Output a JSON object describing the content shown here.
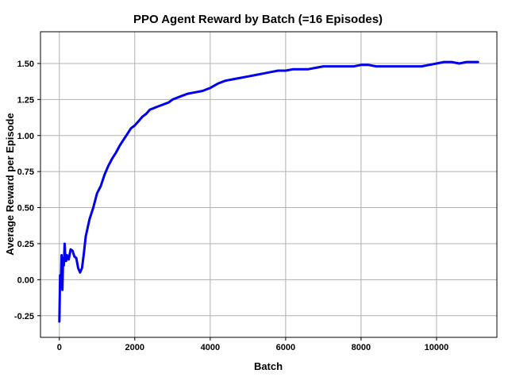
{
  "chart_data": {
    "type": "line",
    "title": "PPO Agent Reward by Batch  (=16 Episodes)",
    "xlabel": "Batch",
    "ylabel": "Average Reward per Episode",
    "xlim": [
      -500,
      11600
    ],
    "ylim": [
      -0.4,
      1.72
    ],
    "xticks": [
      0,
      2000,
      4000,
      6000,
      8000,
      10000
    ],
    "xtick_labels": [
      "0",
      "2000",
      "4000",
      "6000",
      "8000",
      "10000"
    ],
    "yticks": [
      -0.25,
      0.0,
      0.25,
      0.5,
      0.75,
      1.0,
      1.25,
      1.5
    ],
    "ytick_labels": [
      "-0.25",
      "0.00",
      "0.25",
      "0.50",
      "0.75",
      "1.00",
      "1.25",
      "1.50"
    ],
    "grid": true,
    "legend": "none",
    "series": [
      {
        "color": "#0000ee",
        "x": [
          0,
          20,
          40,
          60,
          80,
          100,
          120,
          140,
          160,
          180,
          200,
          250,
          300,
          350,
          400,
          450,
          500,
          550,
          600,
          650,
          700,
          800,
          900,
          1000,
          1100,
          1200,
          1300,
          1400,
          1500,
          1600,
          1700,
          1800,
          1900,
          2000,
          2100,
          2200,
          2300,
          2400,
          2500,
          2600,
          2700,
          2800,
          2900,
          3000,
          3200,
          3400,
          3600,
          3800,
          4000,
          4200,
          4400,
          4600,
          4800,
          5000,
          5200,
          5400,
          5600,
          5800,
          6000,
          6200,
          6400,
          6600,
          6800,
          7000,
          7200,
          7400,
          7600,
          7800,
          8000,
          8200,
          8400,
          8600,
          8800,
          9000,
          9200,
          9400,
          9600,
          9800,
          10000,
          10200,
          10400,
          10600,
          10800,
          11000,
          11100
        ],
        "y": [
          -0.29,
          0.03,
          -0.05,
          0.17,
          -0.07,
          0.15,
          0.1,
          0.25,
          0.15,
          0.13,
          0.17,
          0.14,
          0.21,
          0.2,
          0.16,
          0.15,
          0.08,
          0.05,
          0.08,
          0.18,
          0.3,
          0.42,
          0.5,
          0.6,
          0.65,
          0.73,
          0.79,
          0.84,
          0.88,
          0.93,
          0.97,
          1.01,
          1.05,
          1.07,
          1.1,
          1.13,
          1.15,
          1.18,
          1.19,
          1.2,
          1.21,
          1.22,
          1.23,
          1.25,
          1.27,
          1.29,
          1.3,
          1.31,
          1.33,
          1.36,
          1.38,
          1.39,
          1.4,
          1.41,
          1.42,
          1.43,
          1.44,
          1.45,
          1.45,
          1.46,
          1.46,
          1.46,
          1.47,
          1.48,
          1.48,
          1.48,
          1.48,
          1.48,
          1.49,
          1.49,
          1.48,
          1.48,
          1.48,
          1.48,
          1.48,
          1.48,
          1.48,
          1.49,
          1.5,
          1.51,
          1.51,
          1.5,
          1.51,
          1.51,
          1.51
        ]
      }
    ]
  }
}
